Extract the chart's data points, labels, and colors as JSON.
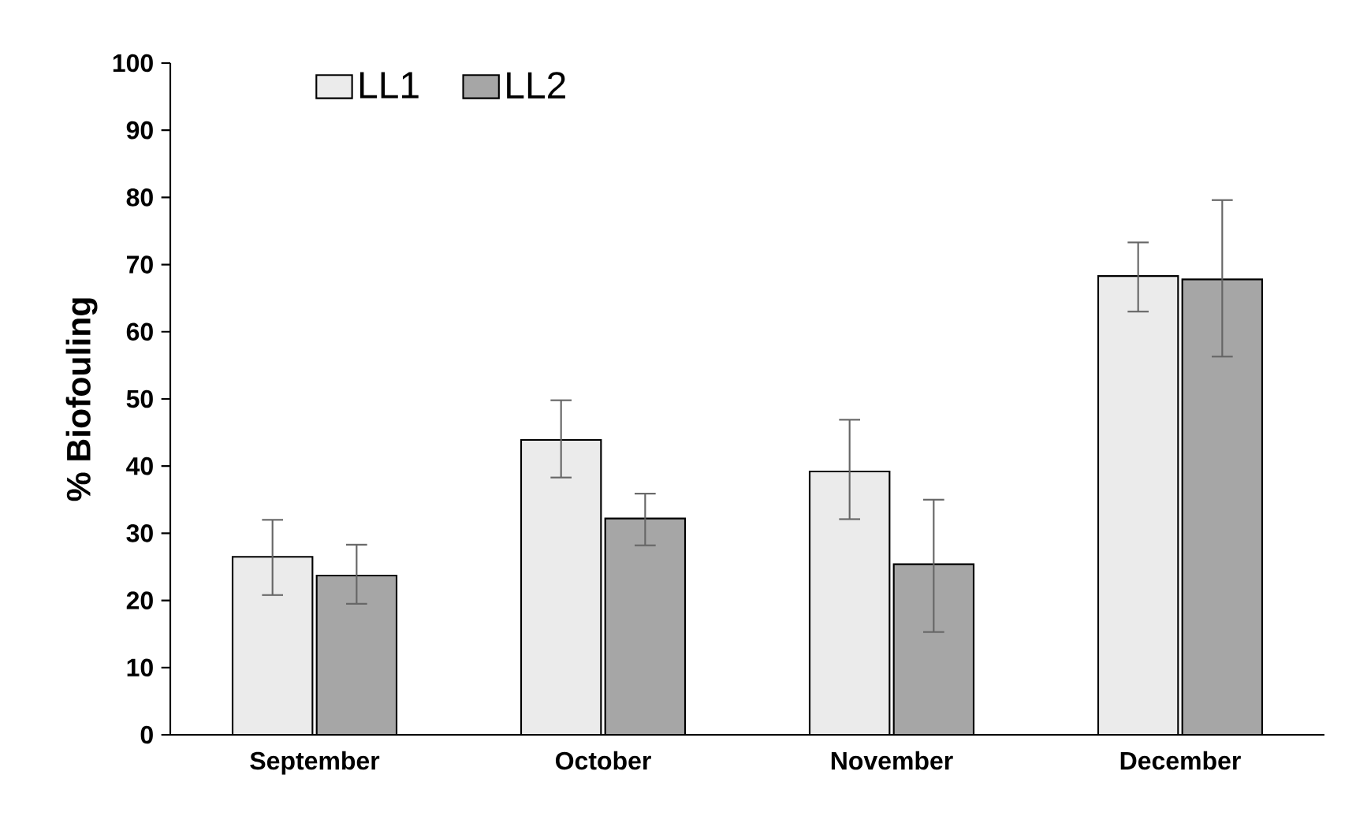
{
  "chart_data": {
    "type": "bar",
    "ylabel": "% Biofouling",
    "categories": [
      "September",
      "October",
      "November",
      "December"
    ],
    "series": [
      {
        "name": "LL1",
        "color": "#ebebeb",
        "values": [
          26.5,
          43.9,
          39.2,
          68.3
        ],
        "errors": [
          [
            20.8,
            32
          ],
          [
            38.3,
            49.8
          ],
          [
            32.1,
            46.9
          ],
          [
            63,
            73.3
          ]
        ]
      },
      {
        "name": "LL2",
        "color": "#a6a6a6",
        "values": [
          23.7,
          32.2,
          25.4,
          67.8
        ],
        "errors": [
          [
            19.5,
            28.3
          ],
          [
            28.2,
            35.9
          ],
          [
            15.3,
            35
          ],
          [
            56.3,
            79.6
          ]
        ]
      }
    ],
    "ylim": [
      0,
      100
    ],
    "yticks": [
      0,
      10,
      20,
      30,
      40,
      50,
      60,
      70,
      80,
      90,
      100
    ],
    "grid": false,
    "legend": "top left"
  }
}
